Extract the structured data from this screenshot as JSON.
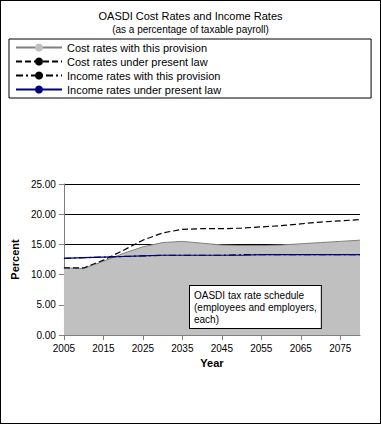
{
  "chart_data": {
    "type": "line",
    "title": "OASDI Cost Rates and Income Rates",
    "subtitle": "(as a percentage of taxable payroll)",
    "x_label": "Year",
    "y_label": "Percent",
    "x": [
      2005,
      2010,
      2015,
      2020,
      2025,
      2030,
      2035,
      2040,
      2045,
      2050,
      2055,
      2060,
      2065,
      2070,
      2075,
      2080
    ],
    "series": [
      {
        "name": "Cost rates with this provision",
        "type": "area",
        "color": "#c0c0c0",
        "line_style": "solid",
        "values": [
          11.1,
          11.0,
          12.2,
          13.5,
          14.6,
          15.3,
          15.5,
          15.2,
          14.9,
          14.8,
          14.8,
          14.9,
          15.1,
          15.3,
          15.5,
          15.7
        ]
      },
      {
        "name": "Cost rates under present law",
        "type": "line",
        "color": "#000000",
        "line_style": "dashed",
        "values": [
          11.1,
          11.1,
          12.4,
          14.0,
          15.7,
          16.9,
          17.5,
          17.6,
          17.6,
          17.7,
          17.9,
          18.1,
          18.4,
          18.7,
          18.9,
          19.1
        ]
      },
      {
        "name": "Income rates with this provision",
        "type": "line",
        "color": "#000000",
        "line_style": "dashdot",
        "values": [
          12.7,
          12.8,
          12.9,
          13.0,
          13.1,
          13.2,
          13.2,
          13.2,
          13.2,
          13.3,
          13.3,
          13.3,
          13.3,
          13.3,
          13.3,
          13.3
        ]
      },
      {
        "name": "Income rates under present law",
        "type": "line",
        "color": "#000080",
        "line_style": "solid",
        "values": [
          12.7,
          12.8,
          12.9,
          13.0,
          13.1,
          13.2,
          13.2,
          13.2,
          13.2,
          13.2,
          13.3,
          13.3,
          13.3,
          13.3,
          13.3,
          13.3
        ]
      }
    ],
    "xlim": [
      2005,
      2080
    ],
    "xticks": [
      2005,
      2015,
      2025,
      2035,
      2045,
      2055,
      2065,
      2075
    ],
    "ylim": [
      0,
      25
    ],
    "yticks": [
      {
        "value": 0,
        "label": "0.00"
      },
      {
        "value": 5,
        "label": "5.00"
      },
      {
        "value": 10,
        "label": "10.00"
      },
      {
        "value": 15,
        "label": "15.00"
      },
      {
        "value": 20,
        "label": "20.00"
      },
      {
        "value": 25,
        "label": "25.00"
      }
    ],
    "grid": true,
    "legend": "top",
    "annotations": [
      {
        "text": "OASDI tax rate schedule\n(employees and employers,\neach)"
      }
    ]
  }
}
